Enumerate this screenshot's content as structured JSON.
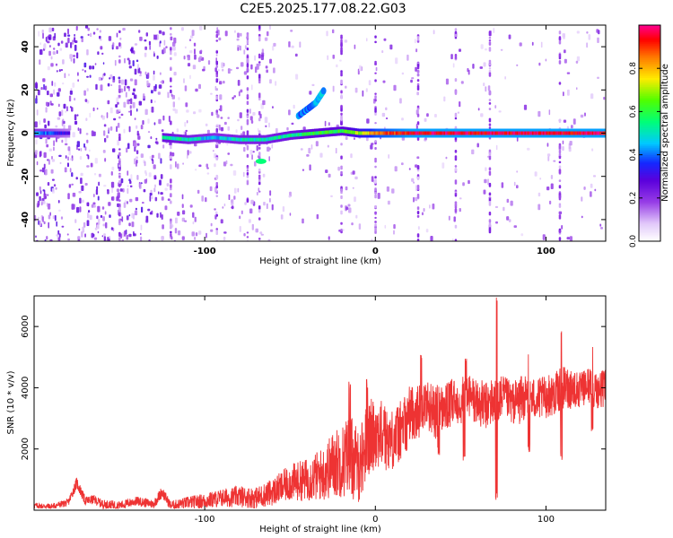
{
  "title": "C2E5.2025.177.08.22.G03",
  "chart_data": [
    {
      "type": "heatmap",
      "xlabel": "Height of straight line (km)",
      "ylabel": "Frequency (Hz)",
      "xlim": [
        -200,
        135
      ],
      "ylim": [
        -50,
        50
      ],
      "xticks": [
        -100,
        0,
        100
      ],
      "yticks": [
        -40,
        -20,
        0,
        20,
        40
      ],
      "colorbar": {
        "label": "Normalized spectral amplitude",
        "range": [
          0.0,
          1.0
        ],
        "ticks": [
          "0.0",
          "0.2",
          "0.4",
          "0.6",
          "0.8"
        ],
        "tick_values": [
          0.0,
          0.2,
          0.4,
          0.6,
          0.8
        ]
      },
      "signal_track": [
        {
          "x": -200,
          "f": 0,
          "a": 0.45
        },
        {
          "x": -180,
          "f": 0,
          "a": 0.3
        },
        {
          "x": -125,
          "f": -2,
          "a": 0.55
        },
        {
          "x": -110,
          "f": -3,
          "a": 0.5
        },
        {
          "x": -95,
          "f": -2,
          "a": 0.45
        },
        {
          "x": -80,
          "f": -3,
          "a": 0.5
        },
        {
          "x": -65,
          "f": -3,
          "a": 0.5
        },
        {
          "x": -50,
          "f": -1,
          "a": 0.55
        },
        {
          "x": -35,
          "f": 0,
          "a": 0.6
        },
        {
          "x": -20,
          "f": 1,
          "a": 0.6
        },
        {
          "x": -10,
          "f": 0,
          "a": 0.7
        },
        {
          "x": 0,
          "f": 0,
          "a": 0.85
        },
        {
          "x": 20,
          "f": 0,
          "a": 0.95
        },
        {
          "x": 60,
          "f": 0,
          "a": 0.95
        },
        {
          "x": 100,
          "f": 0,
          "a": 0.95
        },
        {
          "x": 135,
          "f": 0,
          "a": 0.95
        }
      ],
      "upper_track": [
        {
          "x": -45,
          "f": 8,
          "a": 0.4
        },
        {
          "x": -35,
          "f": 14,
          "a": 0.45
        },
        {
          "x": -30,
          "f": 20,
          "a": 0.35
        }
      ],
      "side_blobs": [
        {
          "x": -67,
          "f": -13,
          "a": 0.55
        }
      ],
      "vertical_streaks_x": [
        -150,
        -120,
        -93,
        -75,
        -68,
        -20,
        0,
        25,
        47,
        67,
        108
      ]
    },
    {
      "type": "line",
      "xlabel": "Height of straight line (km)",
      "ylabel": "SNR (10 * v/v)",
      "xlim": [
        -200,
        135
      ],
      "ylim": [
        0,
        7000
      ],
      "xticks": [
        -100,
        0,
        100
      ],
      "yticks": [
        2000,
        4000,
        6000
      ],
      "color": "#ee3333",
      "series": [
        {
          "x": [
            -200,
            -190,
            -180,
            -175,
            -170,
            -165,
            -160,
            -150,
            -140,
            -130,
            -125,
            -120,
            -110,
            -100,
            -90,
            -80,
            -70,
            -60,
            -50,
            -40,
            -30,
            -25,
            -20,
            -15,
            -10,
            -5,
            0,
            5,
            10,
            15,
            20,
            25,
            30,
            35,
            40,
            45,
            50,
            55,
            60,
            65,
            70,
            75,
            80,
            85,
            90,
            95,
            100,
            105,
            110,
            115,
            120,
            125,
            130,
            135
          ],
          "y": [
            150,
            120,
            250,
            900,
            300,
            350,
            200,
            150,
            300,
            200,
            600,
            150,
            250,
            300,
            400,
            450,
            400,
            600,
            900,
            1000,
            1200,
            1500,
            1600,
            1800,
            1400,
            2200,
            2600,
            2400,
            2300,
            2600,
            3200,
            3200,
            3500,
            3200,
            3300,
            3500,
            3600,
            3700,
            3500,
            3400,
            3600,
            3700,
            3500,
            3600,
            3700,
            3600,
            3700,
            3800,
            4000,
            4000,
            3900,
            4100,
            3900,
            4000
          ],
          "noise": [
            100,
            100,
            120,
            200,
            150,
            150,
            150,
            150,
            150,
            150,
            200,
            150,
            200,
            250,
            300,
            350,
            350,
            450,
            600,
            700,
            900,
            1100,
            1200,
            1400,
            1200,
            1300,
            1200,
            1100,
            1000,
            1000,
            900,
            900,
            800,
            900,
            800,
            800,
            800,
            800,
            800,
            800,
            800,
            700,
            700,
            800,
            700,
            700,
            700,
            700,
            700,
            700,
            600,
            600,
            600,
            600
          ]
        }
      ],
      "peaks": [
        {
          "x": -15,
          "y": 4200
        },
        {
          "x": -5,
          "y": 4300
        },
        {
          "x": 5,
          "y": 2700
        },
        {
          "x": 27,
          "y": 5100
        },
        {
          "x": 53,
          "y": 5000
        },
        {
          "x": 71,
          "y": 7000
        },
        {
          "x": 90,
          "y": 5100
        },
        {
          "x": 109,
          "y": 5900
        },
        {
          "x": 127,
          "y": 5400
        }
      ],
      "dips": [
        {
          "x": 18,
          "y": 1900
        },
        {
          "x": 37,
          "y": 1800
        },
        {
          "x": 52,
          "y": 1600
        },
        {
          "x": 71,
          "y": 300
        },
        {
          "x": 90,
          "y": 1900
        },
        {
          "x": 109,
          "y": 1600
        },
        {
          "x": 127,
          "y": 2500
        }
      ]
    }
  ]
}
